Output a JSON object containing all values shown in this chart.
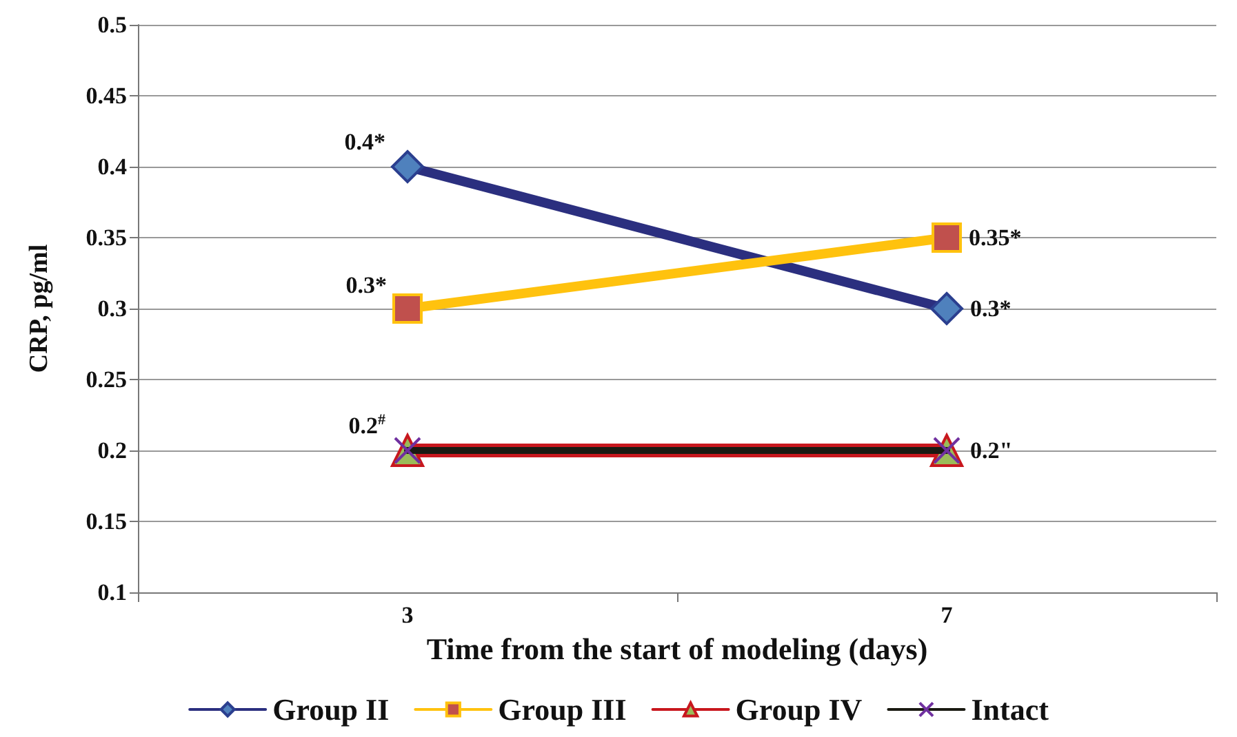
{
  "chart_data": {
    "type": "line",
    "xlabel": "Time from the start of modeling (days)",
    "ylabel": "CRP, pg/ml",
    "categories": [
      "3",
      "7"
    ],
    "series": [
      {
        "name": "Group II",
        "color": "#2b2f7f",
        "marker": "diamond",
        "values": [
          0.4,
          0.3
        ],
        "value_labels": [
          "0.4*",
          "0.3*"
        ]
      },
      {
        "name": "Group III",
        "color": "#ffc20e",
        "marker": "square",
        "values": [
          0.3,
          0.35
        ],
        "value_labels": [
          "0.3*",
          "0.35*"
        ]
      },
      {
        "name": "Group IV",
        "color": "#c8171e",
        "marker": "triangle",
        "values": [
          0.2,
          0.2
        ],
        "value_labels": [
          "0.2$^{#}$",
          "0.2\""
        ]
      },
      {
        "name": "Intact",
        "color": "#1a1a12",
        "marker": "cross",
        "values": [
          0.2,
          0.2
        ]
      }
    ],
    "ylim": [
      0.1,
      0.5
    ],
    "yticks": [
      0.1,
      0.15,
      0.2,
      0.25,
      0.3,
      0.35,
      0.4,
      0.45,
      0.5
    ],
    "grid": "y",
    "legend": "bottom"
  }
}
